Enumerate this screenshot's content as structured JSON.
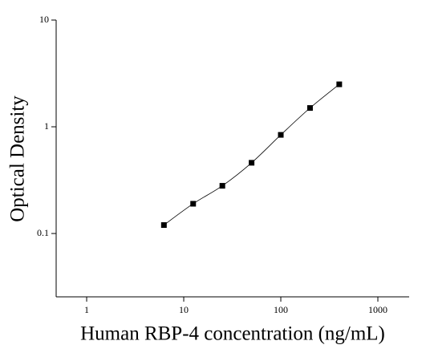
{
  "chart_data": {
    "type": "scatter",
    "x_label": "Human RBP-4 concentration (ng/mL)",
    "y_label": "Optical Density",
    "x": [
      6.25,
      12.5,
      25,
      50,
      100,
      200,
      400
    ],
    "values": [
      0.12,
      0.19,
      0.28,
      0.46,
      0.84,
      1.5,
      2.5
    ],
    "color": "#000000",
    "x_log": true,
    "y_log": true,
    "xlim": [
      0.485,
      2100
    ],
    "ylim": [
      0.0255,
      10
    ],
    "xticks": [
      1,
      10,
      100,
      1000
    ],
    "yticks": [
      0.1,
      1,
      10
    ],
    "fit_line": true
  }
}
